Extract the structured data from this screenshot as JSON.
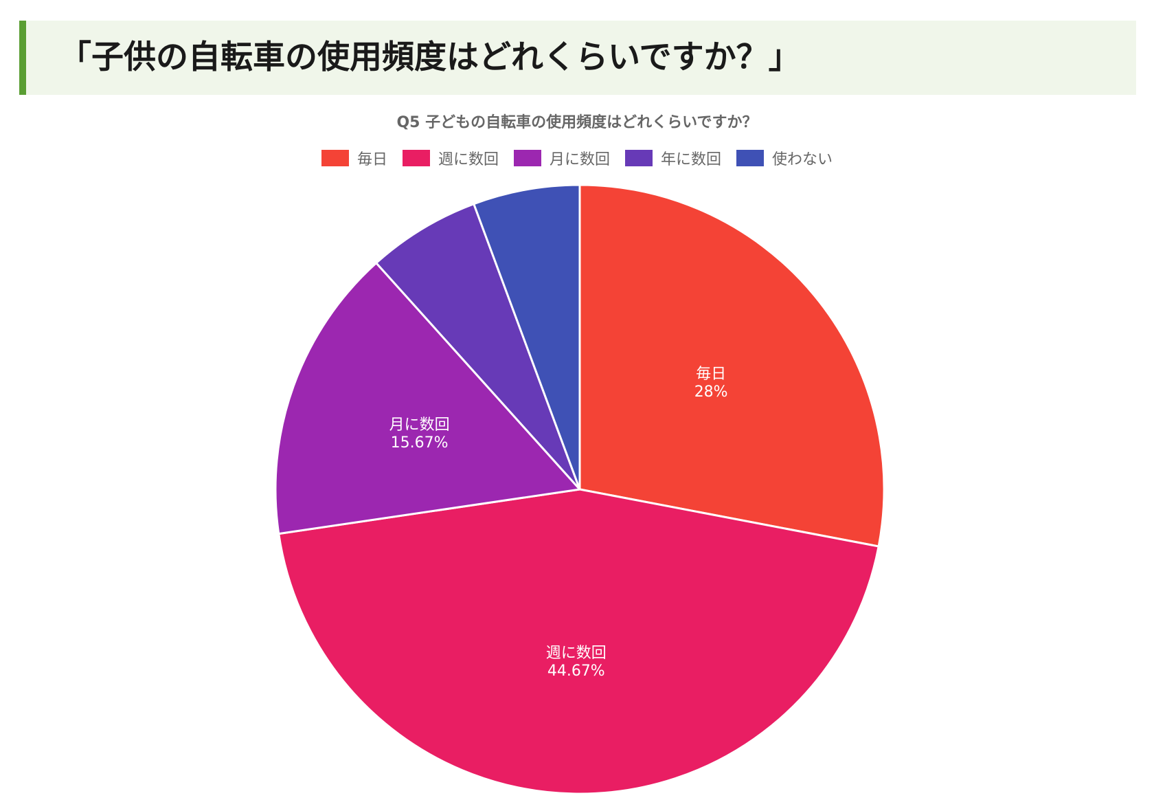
{
  "page": {
    "heading": "「子供の自転車の使用頻度はどれくらいですか？」"
  },
  "chart_data": {
    "type": "pie",
    "title": "Q5 子どもの自転車の使用頻度はどれくらいですか？",
    "legend_position": "top",
    "slices": [
      {
        "name": "毎日",
        "value": 28.0,
        "label": "28%",
        "color": "#f44336"
      },
      {
        "name": "週に数回",
        "value": 44.67,
        "label": "44.67%",
        "color": "#e91e63"
      },
      {
        "name": "月に数回",
        "value": 15.67,
        "label": "15.67%",
        "color": "#9c27b0"
      },
      {
        "name": "年に数回",
        "value": 6.0,
        "label": "",
        "color": "#673ab7"
      },
      {
        "name": "使わない",
        "value": 5.66,
        "label": "",
        "color": "#3f51b5"
      }
    ]
  }
}
